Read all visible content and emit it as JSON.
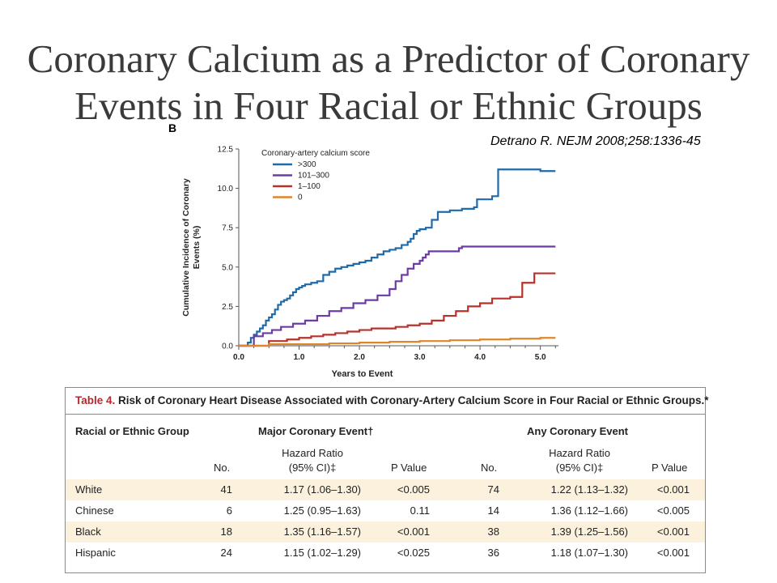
{
  "slide": {
    "title_line1": "Coronary Calcium as a Predictor of Coronary",
    "title_line2": "Events in Four Racial or Ethnic Groups",
    "citation": "Detrano R. NEJM 2008;258:1336-45"
  },
  "chart_data": {
    "type": "line",
    "panel_label": "B",
    "xlabel": "Years to Event",
    "ylabel_line1": "Cumulative Incidence of Coronary",
    "ylabel_line2": "Events (%)",
    "xlim": [
      0,
      5.3
    ],
    "ylim": [
      0,
      12.5
    ],
    "x_ticks": [
      "0.0",
      "1.0",
      "2.0",
      "3.0",
      "4.0",
      "5.0"
    ],
    "y_ticks": [
      "0.0",
      "2.5",
      "5.0",
      "7.5",
      "10.0",
      "12.5"
    ],
    "legend_title": "Coronary-artery calcium score",
    "legend_position": "top-left",
    "series": [
      {
        "name": ">300",
        "color": "#1f6aa8",
        "x": [
          0,
          0.15,
          0.2,
          0.25,
          0.3,
          0.35,
          0.4,
          0.45,
          0.5,
          0.55,
          0.6,
          0.65,
          0.7,
          0.75,
          0.8,
          0.85,
          0.9,
          0.95,
          1.0,
          1.05,
          1.1,
          1.2,
          1.3,
          1.4,
          1.5,
          1.6,
          1.7,
          1.8,
          1.9,
          2.0,
          2.1,
          2.2,
          2.3,
          2.4,
          2.5,
          2.6,
          2.7,
          2.8,
          2.85,
          2.9,
          2.95,
          3.0,
          3.1,
          3.2,
          3.3,
          3.5,
          3.7,
          3.9,
          3.95,
          4.2,
          4.3,
          4.8,
          5.0,
          5.25
        ],
        "y": [
          0,
          0.2,
          0.5,
          0.7,
          0.9,
          1.1,
          1.3,
          1.6,
          1.8,
          2.0,
          2.3,
          2.6,
          2.8,
          2.9,
          3.0,
          3.2,
          3.4,
          3.6,
          3.7,
          3.8,
          3.9,
          4.0,
          4.1,
          4.5,
          4.7,
          4.9,
          5.0,
          5.1,
          5.2,
          5.3,
          5.4,
          5.6,
          5.8,
          6.0,
          6.1,
          6.2,
          6.4,
          6.6,
          6.8,
          7.1,
          7.3,
          7.4,
          7.5,
          8.0,
          8.5,
          8.6,
          8.7,
          8.8,
          9.3,
          9.5,
          11.2,
          11.2,
          11.1,
          11.1
        ]
      },
      {
        "name": "101–300",
        "color": "#6e3aa6",
        "x": [
          0,
          0.25,
          0.4,
          0.55,
          0.7,
          0.9,
          1.1,
          1.3,
          1.5,
          1.7,
          1.9,
          2.1,
          2.3,
          2.5,
          2.6,
          2.7,
          2.8,
          2.9,
          3.0,
          3.05,
          3.1,
          3.15,
          3.4,
          3.65,
          3.7,
          4.0,
          4.5,
          5.0,
          5.25
        ],
        "y": [
          0,
          0.6,
          0.8,
          1.0,
          1.2,
          1.4,
          1.6,
          1.9,
          2.2,
          2.4,
          2.7,
          2.9,
          3.2,
          3.6,
          4.1,
          4.5,
          4.9,
          5.2,
          5.4,
          5.6,
          5.8,
          6.0,
          6.0,
          6.2,
          6.3,
          6.3,
          6.3,
          6.3,
          6.3
        ]
      },
      {
        "name": "1–100",
        "color": "#b8322b",
        "x": [
          0,
          0.5,
          0.8,
          1.0,
          1.2,
          1.4,
          1.6,
          1.8,
          2.0,
          2.2,
          2.4,
          2.6,
          2.8,
          3.0,
          3.2,
          3.4,
          3.6,
          3.8,
          4.0,
          4.2,
          4.5,
          4.7,
          4.9,
          5.25
        ],
        "y": [
          0,
          0.3,
          0.4,
          0.5,
          0.6,
          0.7,
          0.8,
          0.9,
          1.0,
          1.1,
          1.1,
          1.2,
          1.3,
          1.4,
          1.6,
          1.9,
          2.2,
          2.5,
          2.7,
          3.0,
          3.1,
          4.0,
          4.6,
          4.6
        ]
      },
      {
        "name": "0",
        "color": "#e0862a",
        "x": [
          0,
          0.5,
          1.0,
          1.5,
          2.0,
          2.5,
          3.0,
          3.5,
          4.0,
          4.5,
          5.0,
          5.25
        ],
        "y": [
          0,
          0.1,
          0.1,
          0.15,
          0.2,
          0.25,
          0.3,
          0.35,
          0.4,
          0.45,
          0.5,
          0.5
        ]
      }
    ]
  },
  "table": {
    "number_label": "Table 4.",
    "title": " Risk of Coronary Heart Disease Associated with Coronary-Artery Calcium Score in Four Racial or Ethnic Groups.*",
    "col_group": "Racial or Ethnic Group",
    "major_header": "Major Coronary Event†",
    "any_header": "Any Coronary Event",
    "no_label": "No.",
    "hr_label_line1": "Hazard Ratio",
    "hr_label_line2": "(95% CI)‡",
    "p_label": "P Value",
    "rows": [
      {
        "group": "White",
        "major_no": "41",
        "major_hr": "1.17 (1.06–1.30)",
        "major_p": "<0.005",
        "any_no": "74",
        "any_hr": "1.22 (1.13–1.32)",
        "any_p": "<0.001"
      },
      {
        "group": "Chinese",
        "major_no": "6",
        "major_hr": "1.25 (0.95–1.63)",
        "major_p": "0.11",
        "any_no": "14",
        "any_hr": "1.36 (1.12–1.66)",
        "any_p": "<0.005"
      },
      {
        "group": "Black",
        "major_no": "18",
        "major_hr": "1.35 (1.16–1.57)",
        "major_p": "<0.001",
        "any_no": "38",
        "any_hr": "1.39 (1.25–1.56)",
        "any_p": "<0.001"
      },
      {
        "group": "Hispanic",
        "major_no": "24",
        "major_hr": "1.15 (1.02–1.29)",
        "major_p": "<0.025",
        "any_no": "36",
        "any_hr": "1.18 (1.07–1.30)",
        "any_p": "<0.001"
      }
    ]
  }
}
